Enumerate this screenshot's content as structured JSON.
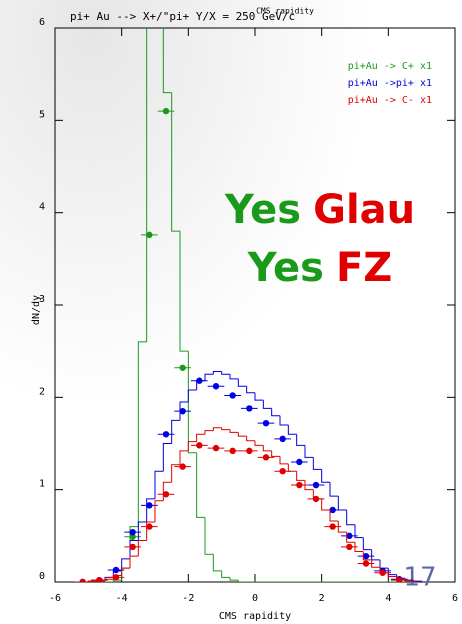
{
  "chart_data": {
    "type": "histogram",
    "title": "pi+ Au --> X+/\"pi+ Y/X = 250 GeV/c",
    "subtitle": "CMS rapidity",
    "x_label": "CMS rapidity",
    "y_label": "dN/dy",
    "xlim": [
      -6,
      6
    ],
    "ylim": [
      0,
      6
    ],
    "xticks": [
      -6,
      -4,
      -2,
      0,
      2,
      4,
      6
    ],
    "yticks": [
      0,
      1,
      2,
      3,
      4,
      5,
      6
    ],
    "bins": [
      -5,
      -4.75,
      -4.5,
      -4.25,
      -4,
      -3.75,
      -3.5,
      -3.25,
      -3,
      -2.75,
      -2.5,
      -2.25,
      -2,
      -1.75,
      -1.5,
      -1.25,
      -1,
      -0.75,
      -0.5,
      -0.25,
      0,
      0.25,
      0.5,
      0.75,
      1,
      1.25,
      1.5,
      1.75,
      2,
      2.25,
      2.5,
      2.75,
      3,
      3.25,
      3.5,
      3.75,
      4,
      4.25,
      4.5,
      4.75,
      5
    ],
    "point_half_width": 0.25,
    "series": [
      {
        "name": "pi+Au -> C+ x1",
        "color": "#1a9a1a",
        "values": [
          0,
          0,
          0,
          0.02,
          0.15,
          0.6,
          2.6,
          6.5,
          6.5,
          5.3,
          3.8,
          2.5,
          1.4,
          0.7,
          0.3,
          0.12,
          0.05,
          0.02,
          0,
          0,
          0,
          0,
          0,
          0,
          0,
          0,
          0,
          0,
          0,
          0,
          0,
          0,
          0,
          0,
          0,
          0,
          0,
          0,
          0,
          0
        ],
        "points_x": [
          -3.67,
          -3.17,
          -2.67,
          -2.17
        ],
        "points_y": [
          0.49,
          3.76,
          5.1,
          2.32
        ]
      },
      {
        "name": "pi+Au ->pi+ x1",
        "color": "#0000e0",
        "values": [
          0.01,
          0.02,
          0.05,
          0.12,
          0.25,
          0.45,
          0.65,
          0.9,
          1.2,
          1.5,
          1.75,
          1.95,
          2.08,
          2.18,
          2.25,
          2.28,
          2.25,
          2.2,
          2.12,
          2.05,
          1.97,
          1.88,
          1.8,
          1.7,
          1.6,
          1.48,
          1.35,
          1.22,
          1.08,
          0.93,
          0.78,
          0.62,
          0.48,
          0.35,
          0.24,
          0.15,
          0.08,
          0.04,
          0.02,
          0.01
        ],
        "points_x": [
          -5.17,
          -4.67,
          -4.17,
          -3.67,
          -3.17,
          -2.67,
          -2.17,
          -1.67,
          -1.17,
          -0.67,
          -0.17,
          0.33,
          0.83,
          1.33,
          1.83,
          2.33,
          2.83,
          3.33,
          3.83,
          4.33
        ],
        "points_y": [
          0,
          0.02,
          0.13,
          0.54,
          0.83,
          1.6,
          1.85,
          2.18,
          2.12,
          2.02,
          1.88,
          1.72,
          1.55,
          1.3,
          1.05,
          0.78,
          0.5,
          0.28,
          0.12,
          0.03
        ]
      },
      {
        "name": "pi+Au -> C- x1",
        "color": "#e00000",
        "values": [
          0.01,
          0.01,
          0.03,
          0.07,
          0.15,
          0.28,
          0.45,
          0.65,
          0.88,
          1.08,
          1.27,
          1.42,
          1.52,
          1.6,
          1.64,
          1.67,
          1.65,
          1.62,
          1.58,
          1.53,
          1.48,
          1.42,
          1.36,
          1.28,
          1.2,
          1.1,
          1.0,
          0.9,
          0.78,
          0.66,
          0.54,
          0.43,
          0.33,
          0.24,
          0.16,
          0.1,
          0.06,
          0.03,
          0.01,
          0
        ],
        "points_x": [
          -5.17,
          -4.67,
          -4.17,
          -3.67,
          -3.17,
          -2.67,
          -2.17,
          -1.67,
          -1.17,
          -0.67,
          -0.17,
          0.33,
          0.83,
          1.33,
          1.83,
          2.33,
          2.83,
          3.33,
          3.83,
          4.33
        ],
        "points_y": [
          0,
          0.02,
          0.05,
          0.38,
          0.6,
          0.95,
          1.25,
          1.48,
          1.45,
          1.42,
          1.42,
          1.35,
          1.2,
          1.05,
          0.9,
          0.6,
          0.38,
          0.2,
          0.1,
          0.02
        ]
      }
    ],
    "annotations": [
      [
        {
          "text": "Yes",
          "color": "#1a9a1a"
        },
        {
          "text": "Glau",
          "color": "#e00000"
        }
      ],
      [
        {
          "text": "Yes",
          "color": "#1a9a1a"
        },
        {
          "text": "FZ",
          "color": "#e00000"
        }
      ]
    ],
    "page_number": "17"
  }
}
